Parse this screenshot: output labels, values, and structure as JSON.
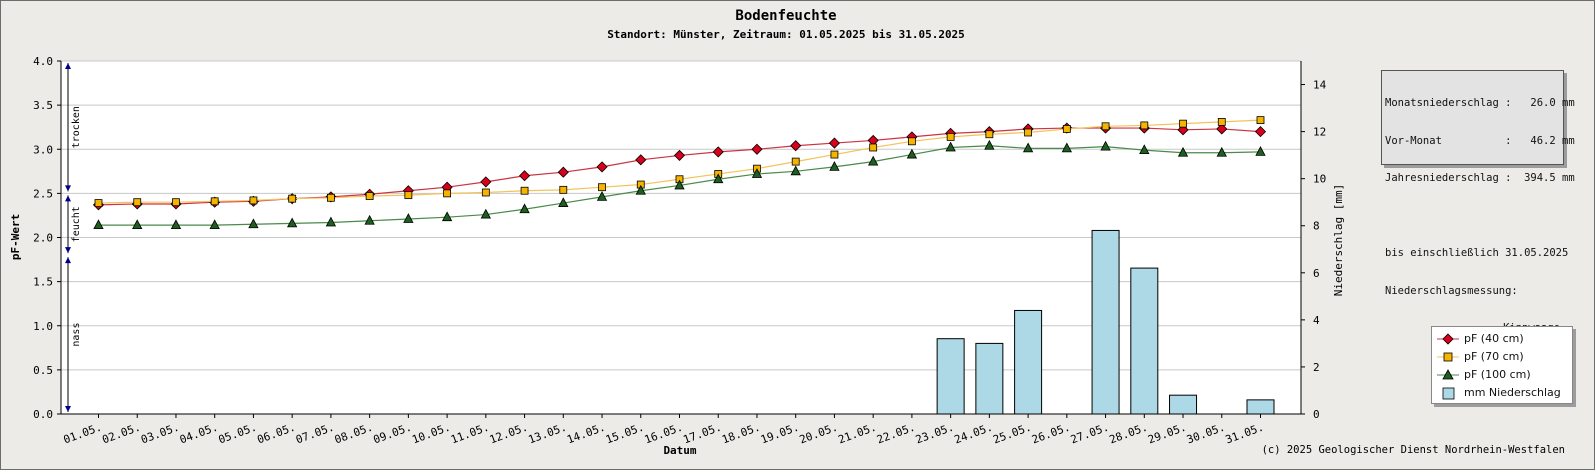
{
  "chart_data": {
    "type": "line",
    "title": "Bodenfeuchte",
    "subtitle": "Standort: Münster, Zeitraum: 01.05.2025 bis 31.05.2025",
    "xlabel": "Datum",
    "ylabel": "pF-Wert",
    "y2label": "Niederschlag [mm]",
    "ylim": [
      0,
      4
    ],
    "yticks": [
      "0.0",
      "0.5",
      "1.0",
      "1.5",
      "2.0",
      "2.5",
      "3.0",
      "3.5",
      "4.0"
    ],
    "y2lim": [
      0,
      15
    ],
    "y2ticks": [
      "0",
      "2",
      "4",
      "6",
      "8",
      "10",
      "12",
      "14"
    ],
    "grid": true,
    "legend_position": "right",
    "categories": [
      "01.05.",
      "02.05.",
      "03.05.",
      "04.05.",
      "05.05.",
      "06.05.",
      "07.05.",
      "08.05.",
      "09.05.",
      "10.05.",
      "11.05.",
      "12.05.",
      "13.05.",
      "14.05.",
      "15.05.",
      "16.05.",
      "17.05.",
      "18.05.",
      "19.05.",
      "20.05.",
      "21.05.",
      "22.05.",
      "23.05.",
      "24.05.",
      "25.05.",
      "26.05.",
      "27.05.",
      "28.05.",
      "29.05.",
      "30.05.",
      "31.05."
    ],
    "zones": [
      {
        "label": "trocken",
        "from": 2.5,
        "to": 4.0
      },
      {
        "label": "feucht",
        "from": 1.8,
        "to": 2.5
      },
      {
        "label": "nass",
        "from": 0.0,
        "to": 1.8
      }
    ],
    "series": [
      {
        "name": "pF (40 cm)",
        "marker": "diamond",
        "color": "#d9001b",
        "line_color": "#cc3344",
        "values": [
          2.37,
          2.38,
          2.38,
          2.4,
          2.41,
          2.44,
          2.46,
          2.49,
          2.53,
          2.57,
          2.63,
          2.7,
          2.74,
          2.8,
          2.88,
          2.93,
          2.97,
          3.0,
          3.04,
          3.07,
          3.1,
          3.14,
          3.18,
          3.2,
          3.23,
          3.24,
          3.24,
          3.24,
          3.22,
          3.23,
          3.2
        ]
      },
      {
        "name": "pF (70 cm)",
        "marker": "square",
        "color": "#f5b400",
        "line_color": "#f3c35a",
        "values": [
          2.39,
          2.4,
          2.4,
          2.41,
          2.42,
          2.44,
          2.45,
          2.47,
          2.48,
          2.5,
          2.51,
          2.53,
          2.54,
          2.57,
          2.6,
          2.66,
          2.72,
          2.78,
          2.86,
          2.94,
          3.02,
          3.09,
          3.14,
          3.17,
          3.19,
          3.23,
          3.26,
          3.27,
          3.29,
          3.31,
          3.33
        ]
      },
      {
        "name": "pF (100 cm)",
        "marker": "triangle",
        "color": "#1e5e1e",
        "line_color": "#4a8a4a",
        "values": [
          2.14,
          2.14,
          2.14,
          2.14,
          2.15,
          2.16,
          2.17,
          2.19,
          2.21,
          2.23,
          2.26,
          2.32,
          2.39,
          2.46,
          2.53,
          2.59,
          2.66,
          2.72,
          2.75,
          2.8,
          2.86,
          2.94,
          3.02,
          3.04,
          3.01,
          3.01,
          3.03,
          2.99,
          2.96,
          2.96,
          2.97
        ]
      }
    ],
    "bars": {
      "name": "mm  Niederschlag",
      "axis": "right",
      "color": "#add8e6",
      "values": [
        0,
        0,
        0,
        0,
        0,
        0,
        0,
        0,
        0,
        0,
        0,
        0,
        0,
        0,
        0,
        0,
        0,
        0,
        0,
        0,
        0,
        0,
        3.2,
        3.0,
        4.4,
        0,
        7.8,
        6.2,
        0.8,
        0,
        0.6
      ]
    }
  },
  "stats_box": {
    "lines": [
      "Monatsniederschlag :   26.0 mm",
      "Vor-Monat          :   46.2 mm",
      "Jahresniederschlag :  394.5 mm",
      "",
      "bis einschließlich 31.05.2025",
      "Niederschlagsmessung:"
    ],
    "last_line": "Kippwaage"
  },
  "copyright": "(c) 2025 Geologischer Dienst Nordrhein-Westfalen"
}
